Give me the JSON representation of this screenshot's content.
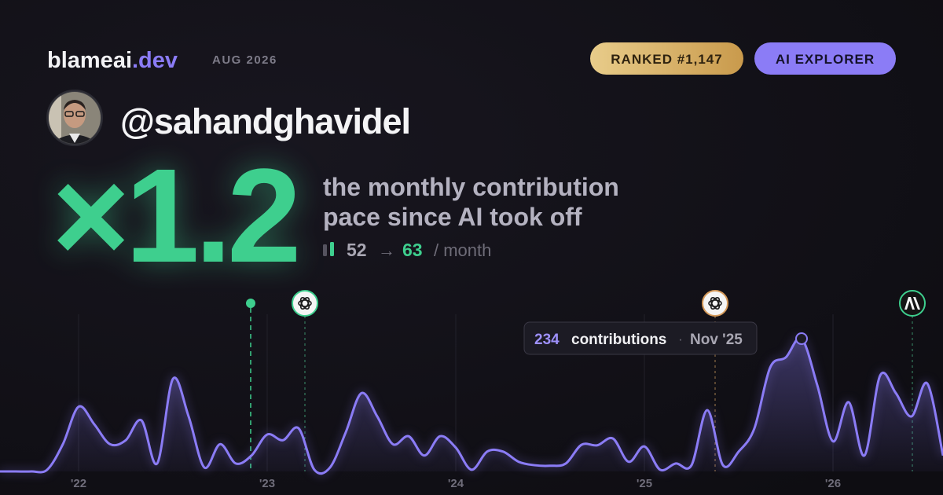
{
  "header": {
    "brand": "blameai",
    "brand_suffix": ".dev",
    "date": "AUG 2026",
    "rank_badge": "RANKED #1,147",
    "tier_badge": "AI EXPLORER"
  },
  "profile": {
    "username": "@sahandghavidel"
  },
  "headline": {
    "multiplier": "×1.2",
    "description": [
      "the monthly contribution",
      "pace since AI took off"
    ],
    "before": 52,
    "arrow": "→",
    "after": 63,
    "unit": "/ month"
  },
  "chart_data": {
    "type": "area",
    "color": "#8b7cf6",
    "categories": [
      null,
      null,
      null,
      null,
      null,
      "'22",
      null,
      null,
      null,
      null,
      null,
      null,
      null,
      null,
      null,
      null,
      null,
      "'23",
      null,
      null,
      null,
      null,
      null,
      null,
      null,
      null,
      null,
      null,
      null,
      "'24",
      null,
      null,
      null,
      null,
      null,
      null,
      null,
      null,
      null,
      null,
      null,
      "'25",
      null,
      null,
      null,
      null,
      null,
      null,
      null,
      null,
      null,
      null,
      null,
      "'26",
      null,
      null,
      null,
      null,
      null,
      null,
      null
    ],
    "values": [
      0,
      0,
      0,
      3,
      48,
      114,
      83,
      48,
      55,
      90,
      14,
      163,
      97,
      7,
      48,
      14,
      28,
      65,
      55,
      76,
      3,
      7,
      69,
      138,
      97,
      48,
      62,
      28,
      62,
      42,
      3,
      35,
      35,
      17,
      11,
      10,
      14,
      47,
      46,
      58,
      17,
      44,
      3,
      14,
      11,
      108,
      11,
      35,
      76,
      183,
      201,
      234,
      152,
      53,
      122,
      28,
      169,
      138,
      97,
      155,
      28
    ],
    "tooltip": {
      "label": "contributions",
      "date": "Nov '25"
    }
  }
}
